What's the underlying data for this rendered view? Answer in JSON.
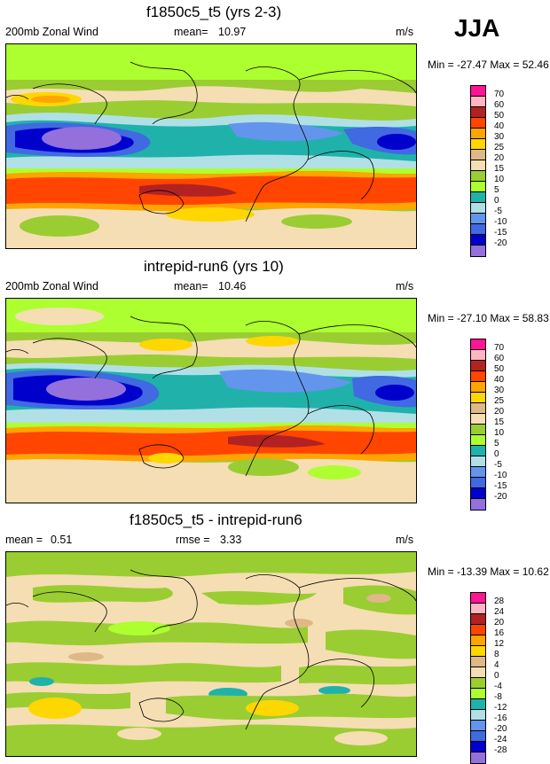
{
  "season": "JJA",
  "palette_full": [
    "#9370db",
    "#0000cd",
    "#4169e1",
    "#6495ed",
    "#b0e0e6",
    "#20b2aa",
    "#adff2f",
    "#9acd32",
    "#f5deb3",
    "#deb887",
    "#ffd700",
    "#ffa500",
    "#ff4500",
    "#b22222",
    "#ffb6c1",
    "#ff1493"
  ],
  "palette_diff": [
    "#9370db",
    "#0000cd",
    "#4169e1",
    "#6495ed",
    "#b0e0e6",
    "#20b2aa",
    "#adff2f",
    "#9acd32",
    "#f5deb3",
    "#deb887",
    "#ffd700",
    "#ffa500",
    "#ff4500",
    "#b22222",
    "#ffb6c1",
    "#ff1493"
  ],
  "panels": [
    {
      "title": "f1850c5_t5 (yrs 2-3)",
      "left_label": "200mb Zonal Wind",
      "mean_label": "mean=",
      "mean_value": "10.97",
      "units": "m/s",
      "minmax": "Min = -27.47 Max = 52.46",
      "levels": [
        "70",
        "60",
        "50",
        "40",
        "30",
        "25",
        "20",
        "15",
        "10",
        "5",
        "0",
        "-5",
        "-10",
        "-15",
        "-20"
      ]
    },
    {
      "title": "intrepid-run6 (yrs 10)",
      "left_label": "200mb Zonal Wind",
      "mean_label": "mean=",
      "mean_value": "10.46",
      "units": "m/s",
      "minmax": "Min = -27.10 Max = 58.83",
      "levels": [
        "70",
        "60",
        "50",
        "40",
        "30",
        "25",
        "20",
        "15",
        "10",
        "5",
        "0",
        "-5",
        "-10",
        "-15",
        "-20"
      ]
    },
    {
      "title": "f1850c5_t5 - intrepid-run6",
      "left_label": "mean =",
      "left_value": "0.51",
      "mean_label": "rmse =",
      "mean_value": "3.33",
      "units": "m/s",
      "minmax": "Min = -13.39 Max = 10.62",
      "levels": [
        "28",
        "24",
        "20",
        "16",
        "12",
        "8",
        "4",
        "0",
        "-4",
        "-8",
        "-12",
        "-16",
        "-20",
        "-24",
        "-28"
      ]
    }
  ]
}
